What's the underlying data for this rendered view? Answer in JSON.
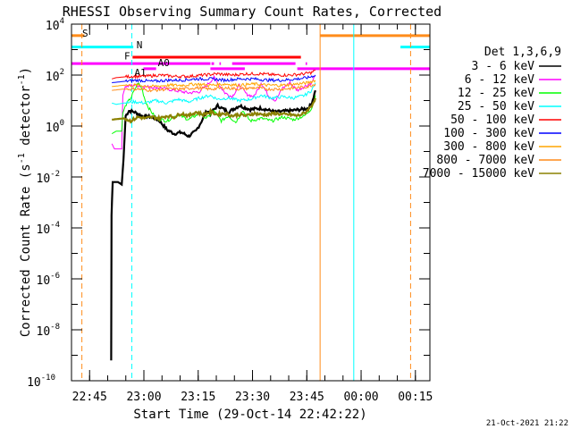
{
  "chart_data": {
    "type": "line",
    "title": "RHESSI Observing Summary Count Rates, Corrected",
    "xlabel": "Start Time (29-Oct-14 22:42:22)",
    "ylabel_main": "Corrected Count Rate (s",
    "ylabel_sup1": "-1",
    "ylabel_mid": " detector",
    "ylabel_sup2": "-1",
    "ylabel_end": ")",
    "footer": "21-Oct-2021 21:22",
    "legend_title": "Det 1,3,6,9",
    "x_range_min": [
      -2.37,
      96.63
    ],
    "y_log_range": [
      -10,
      4
    ],
    "x_ticks": [
      {
        "m": 2.63,
        "label": "22:45"
      },
      {
        "m": 17.63,
        "label": "23:00"
      },
      {
        "m": 32.63,
        "label": "23:15"
      },
      {
        "m": 47.63,
        "label": "23:30"
      },
      {
        "m": 62.63,
        "label": "23:45"
      },
      {
        "m": 77.63,
        "label": "00:00"
      },
      {
        "m": 92.63,
        "label": "00:15"
      }
    ],
    "y_ticks": [
      {
        "exp": 4,
        "label": "10",
        "sup": "4"
      },
      {
        "exp": 2,
        "label": "10",
        "sup": "2"
      },
      {
        "exp": 0,
        "label": "10",
        "sup": "0"
      },
      {
        "exp": -2,
        "label": "10",
        "sup": "-2"
      },
      {
        "exp": -4,
        "label": "10",
        "sup": "-4"
      },
      {
        "exp": -6,
        "label": "10",
        "sup": "-6"
      },
      {
        "exp": -8,
        "label": "10",
        "sup": "-8"
      },
      {
        "exp": -10,
        "label": "10",
        "sup": "-10"
      }
    ],
    "series": [
      {
        "name": "3 - 6 keV",
        "color": "#000000",
        "points": [
          [
            8.6,
            -9.2
          ],
          [
            8.7,
            -3.5
          ],
          [
            9.0,
            -2.2
          ],
          [
            10.5,
            -2.2
          ],
          [
            11.5,
            -2.3
          ],
          [
            12.0,
            -1.3
          ],
          [
            12.6,
            0.4
          ],
          [
            13.5,
            0.6
          ],
          [
            15,
            0.55
          ],
          [
            17,
            0.4
          ],
          [
            20,
            0.35
          ],
          [
            22,
            0.2
          ],
          [
            24,
            -0.15
          ],
          [
            26,
            -0.3
          ],
          [
            28,
            -0.25
          ],
          [
            30,
            -0.4
          ],
          [
            32,
            -0.2
          ],
          [
            34,
            0.3
          ],
          [
            35,
            0.6
          ],
          [
            36,
            0.5
          ],
          [
            38,
            0.8
          ],
          [
            41,
            0.55
          ],
          [
            44,
            0.8
          ],
          [
            47,
            0.65
          ],
          [
            50,
            0.7
          ],
          [
            54,
            0.55
          ],
          [
            58,
            0.6
          ],
          [
            61,
            0.65
          ],
          [
            63,
            0.7
          ],
          [
            64,
            0.9
          ],
          [
            65,
            1.4
          ]
        ]
      },
      {
        "name": "6 - 12 keV",
        "color": "#ff00ff",
        "points": [
          [
            8.8,
            -0.7
          ],
          [
            9.5,
            -0.9
          ],
          [
            11.5,
            -0.9
          ],
          [
            11.8,
            1.2
          ],
          [
            12.5,
            1.55
          ],
          [
            15,
            1.6
          ],
          [
            18,
            1.55
          ],
          [
            22,
            1.5
          ],
          [
            26,
            1.4
          ],
          [
            30,
            1.3
          ],
          [
            33,
            1.35
          ],
          [
            35,
            1.6
          ],
          [
            37,
            1.9
          ],
          [
            38,
            1.7
          ],
          [
            40,
            1.3
          ],
          [
            42,
            1.15
          ],
          [
            44,
            1.6
          ],
          [
            46,
            1.25
          ],
          [
            48,
            1.15
          ],
          [
            50,
            1.7
          ],
          [
            52,
            1.2
          ],
          [
            54,
            1.0
          ],
          [
            56,
            1.5
          ],
          [
            58,
            1.7
          ],
          [
            60,
            1.4
          ],
          [
            62,
            1.55
          ],
          [
            64,
            1.7
          ],
          [
            65,
            2.0
          ]
        ]
      },
      {
        "name": "12 - 25 keV",
        "color": "#00ff00",
        "points": [
          [
            8.8,
            -0.3
          ],
          [
            10,
            -0.2
          ],
          [
            11.5,
            -0.2
          ],
          [
            11.8,
            0.5
          ],
          [
            12.5,
            0.8
          ],
          [
            14,
            1.1
          ],
          [
            16,
            1.7
          ],
          [
            17,
            1.5
          ],
          [
            18,
            1.0
          ],
          [
            19,
            0.7
          ],
          [
            21,
            0.3
          ],
          [
            24,
            0.2
          ],
          [
            27,
            0.45
          ],
          [
            30,
            0.25
          ],
          [
            33,
            0.5
          ],
          [
            35,
            0.3
          ],
          [
            37,
            0.6
          ],
          [
            39,
            0.2
          ],
          [
            41,
            0.4
          ],
          [
            43,
            0.15
          ],
          [
            45,
            0.6
          ],
          [
            47,
            0.2
          ],
          [
            50,
            0.3
          ],
          [
            53,
            0.2
          ],
          [
            56,
            0.35
          ],
          [
            59,
            0.25
          ],
          [
            62,
            0.4
          ],
          [
            64,
            0.7
          ],
          [
            65,
            1.2
          ]
        ]
      },
      {
        "name": "25 - 50 keV",
        "color": "#00ffff",
        "points": [
          [
            8.8,
            0.9
          ],
          [
            10,
            0.85
          ],
          [
            12,
            0.9
          ],
          [
            15,
            0.95
          ],
          [
            18,
            0.9
          ],
          [
            21,
            1.0
          ],
          [
            24,
            0.9
          ],
          [
            27,
            1.05
          ],
          [
            30,
            0.95
          ],
          [
            33,
            1.1
          ],
          [
            36,
            1.2
          ],
          [
            38,
            1.05
          ],
          [
            41,
            1.1
          ],
          [
            44,
            1.0
          ],
          [
            47,
            1.05
          ],
          [
            50,
            1.2
          ],
          [
            53,
            1.1
          ],
          [
            56,
            1.15
          ],
          [
            59,
            1.1
          ],
          [
            62,
            1.2
          ],
          [
            64,
            1.4
          ],
          [
            65,
            1.7
          ]
        ]
      },
      {
        "name": "50 - 100 keV",
        "color": "#ff0000",
        "points": [
          [
            8.8,
            1.85
          ],
          [
            10,
            1.9
          ],
          [
            14,
            1.95
          ],
          [
            18,
            1.95
          ],
          [
            22,
            2.0
          ],
          [
            26,
            1.95
          ],
          [
            30,
            1.95
          ],
          [
            34,
            2.0
          ],
          [
            38,
            2.05
          ],
          [
            42,
            2.0
          ],
          [
            46,
            2.05
          ],
          [
            50,
            2.05
          ],
          [
            54,
            2.0
          ],
          [
            58,
            2.0
          ],
          [
            62,
            2.05
          ],
          [
            64,
            2.1
          ],
          [
            65,
            2.2
          ]
        ]
      },
      {
        "name": "100 - 300 keV",
        "color": "#0000ff",
        "points": [
          [
            8.8,
            1.7
          ],
          [
            12,
            1.75
          ],
          [
            16,
            1.8
          ],
          [
            20,
            1.75
          ],
          [
            24,
            1.8
          ],
          [
            28,
            1.8
          ],
          [
            32,
            1.85
          ],
          [
            36,
            1.85
          ],
          [
            40,
            1.8
          ],
          [
            44,
            1.85
          ],
          [
            48,
            1.85
          ],
          [
            52,
            1.8
          ],
          [
            56,
            1.8
          ],
          [
            60,
            1.85
          ],
          [
            63,
            1.9
          ],
          [
            65,
            2.0
          ]
        ]
      },
      {
        "name": "300 - 800 keV",
        "color": "#ffa500",
        "points": [
          [
            8.8,
            1.55
          ],
          [
            12,
            1.6
          ],
          [
            16,
            1.6
          ],
          [
            20,
            1.55
          ],
          [
            24,
            1.6
          ],
          [
            28,
            1.6
          ],
          [
            32,
            1.65
          ],
          [
            36,
            1.6
          ],
          [
            40,
            1.65
          ],
          [
            44,
            1.6
          ],
          [
            48,
            1.65
          ],
          [
            52,
            1.6
          ],
          [
            56,
            1.6
          ],
          [
            60,
            1.65
          ],
          [
            63,
            1.7
          ],
          [
            65,
            1.8
          ]
        ]
      },
      {
        "name": "800 - 7000 keV",
        "color": "#ff8c1a",
        "points": [
          [
            8.8,
            1.4
          ],
          [
            12,
            1.45
          ],
          [
            16,
            1.45
          ],
          [
            20,
            1.4
          ],
          [
            24,
            1.45
          ],
          [
            28,
            1.45
          ],
          [
            32,
            1.5
          ],
          [
            36,
            1.45
          ],
          [
            40,
            1.5
          ],
          [
            44,
            1.45
          ],
          [
            48,
            1.5
          ],
          [
            52,
            1.45
          ],
          [
            56,
            1.45
          ],
          [
            60,
            1.5
          ],
          [
            63,
            1.55
          ],
          [
            65,
            1.65
          ]
        ]
      },
      {
        "name": "7000 - 15000 keV",
        "color": "#8b8000",
        "points": [
          [
            8.8,
            0.25
          ],
          [
            12,
            0.3
          ],
          [
            14,
            0.2
          ],
          [
            16,
            0.35
          ],
          [
            18,
            0.3
          ],
          [
            20,
            0.35
          ],
          [
            22,
            0.3
          ],
          [
            24,
            0.4
          ],
          [
            26,
            0.35
          ],
          [
            28,
            0.5
          ],
          [
            30,
            0.4
          ],
          [
            32,
            0.55
          ],
          [
            34,
            0.45
          ],
          [
            36,
            0.55
          ],
          [
            38,
            0.45
          ],
          [
            40,
            0.5
          ],
          [
            42,
            0.4
          ],
          [
            44,
            0.45
          ],
          [
            46,
            0.4
          ],
          [
            48,
            0.5
          ],
          [
            50,
            0.45
          ],
          [
            52,
            0.45
          ],
          [
            54,
            0.5
          ],
          [
            56,
            0.45
          ],
          [
            58,
            0.45
          ],
          [
            60,
            0.4
          ],
          [
            62,
            0.5
          ],
          [
            64,
            0.8
          ],
          [
            65,
            1.1
          ]
        ]
      }
    ],
    "vlines": [
      {
        "m": 0.5,
        "color": "#ff8c1a",
        "dashed": true
      },
      {
        "m": 14.3,
        "color": "#00ffff",
        "dashed": true
      },
      {
        "m": 66.3,
        "color": "#ff8c1a",
        "dashed": false
      },
      {
        "m": 75.6,
        "color": "#00ffff",
        "dashed": false
      },
      {
        "m": 91.3,
        "color": "#ff8c1a",
        "dashed": true
      }
    ],
    "flag_bars": [
      {
        "start": -2.37,
        "end": 1.2,
        "y_exp": 3.55,
        "color": "#ff8c1a"
      },
      {
        "start": 66.3,
        "end": 96.63,
        "y_exp": 3.55,
        "color": "#ff8c1a"
      },
      {
        "start": -2.37,
        "end": 14.7,
        "y_exp": 3.1,
        "color": "#00ffff"
      },
      {
        "start": 88.5,
        "end": 96.63,
        "y_exp": 3.1,
        "color": "#00ffff"
      },
      {
        "start": 14.5,
        "end": 61.0,
        "y_exp": 2.7,
        "color": "#ff0000"
      },
      {
        "start": -2.37,
        "end": 36.0,
        "y_exp": 2.45,
        "color": "#ff00ff"
      },
      {
        "start": 36.3,
        "end": 37.0,
        "y_exp": 2.45,
        "color": "#ff00ff"
      },
      {
        "start": 38.5,
        "end": 38.9,
        "y_exp": 2.45,
        "color": "#ff00ff"
      },
      {
        "start": 42.0,
        "end": 59.5,
        "y_exp": 2.45,
        "color": "#ff00ff"
      },
      {
        "start": 62.3,
        "end": 62.7,
        "y_exp": 2.45,
        "color": "#ff00ff"
      },
      {
        "start": 17.5,
        "end": 21.0,
        "y_exp": 2.25,
        "color": "#ff00ff"
      },
      {
        "start": 36.0,
        "end": 45.5,
        "y_exp": 2.25,
        "color": "#ff00ff"
      },
      {
        "start": 60.0,
        "end": 96.63,
        "y_exp": 2.25,
        "color": "#ff00ff"
      }
    ],
    "flag_labels": [
      {
        "text": "S",
        "m": 0.6,
        "y_exp": 3.65,
        "color": "#ff8c1a"
      },
      {
        "text": "N",
        "m": 15.6,
        "y_exp": 3.2,
        "color": "#00ffff"
      },
      {
        "text": "F",
        "m": 12.2,
        "y_exp": 2.75,
        "color": "#ff0000"
      },
      {
        "text": "A0",
        "m": 21.5,
        "y_exp": 2.5,
        "color": "#ff00ff"
      },
      {
        "text": "A1",
        "m": 15.0,
        "y_exp": 2.1,
        "color": "#ff00ff"
      }
    ]
  }
}
